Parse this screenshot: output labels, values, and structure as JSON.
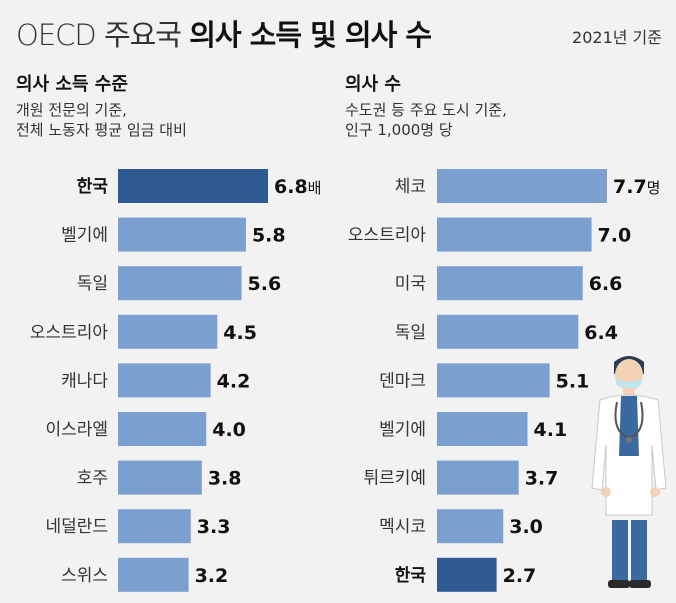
{
  "header": {
    "title_light": "OECD 주요국",
    "title_bold": "의사 소득 및 의사 수",
    "year_note": "2021년 기준"
  },
  "colors": {
    "bar": "#7b9fcf",
    "bar_highlight": "#2f5a91",
    "background": "#f2f2f2"
  },
  "illustration": {
    "icon": "doctor-icon"
  },
  "chart_data": [
    {
      "type": "bar",
      "orientation": "horizontal",
      "title": "의사 소득 수준",
      "subtitle": [
        "개원 전문의 기준,",
        "전체 노동자 평균 임금 대비"
      ],
      "unit": "배",
      "categories": [
        "한국",
        "벨기에",
        "독일",
        "오스트리아",
        "캐나다",
        "이스라엘",
        "호주",
        "네덜란드",
        "스위스"
      ],
      "values": [
        6.8,
        5.8,
        5.6,
        4.5,
        4.2,
        4.0,
        3.8,
        3.3,
        3.2
      ],
      "value_labels": [
        "6.8",
        "5.8",
        "5.6",
        "4.5",
        "4.2",
        "4.0",
        "3.8",
        "3.3",
        "3.2"
      ],
      "highlight": "한국"
    },
    {
      "type": "bar",
      "orientation": "horizontal",
      "title": "의사 수",
      "subtitle": [
        "수도권 등 주요 도시 기준,",
        "인구 1,000명 당"
      ],
      "unit": "명",
      "categories": [
        "체코",
        "오스트리아",
        "미국",
        "독일",
        "덴마크",
        "벨기에",
        "튀르키예",
        "멕시코",
        "한국"
      ],
      "values": [
        7.7,
        7.0,
        6.6,
        6.4,
        5.1,
        4.1,
        3.7,
        3.0,
        2.7
      ],
      "value_labels": [
        "7.7",
        "7.0",
        "6.6",
        "6.4",
        "5.1",
        "4.1",
        "3.7",
        "3.0",
        "2.7"
      ],
      "highlight": "한국"
    }
  ]
}
